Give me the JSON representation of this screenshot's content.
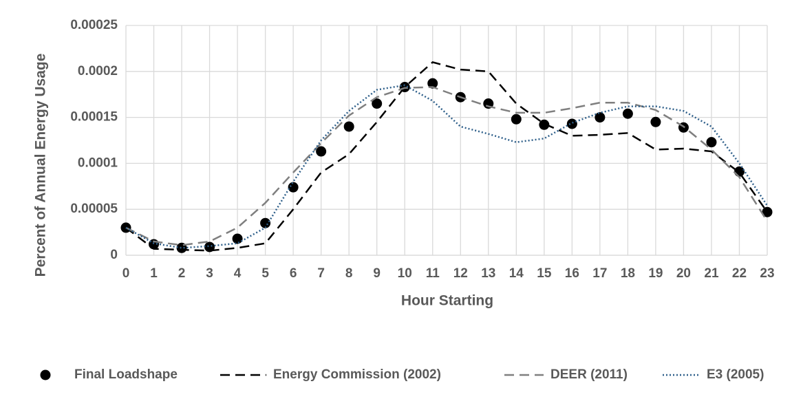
{
  "chart_data": {
    "type": "line",
    "x_label": "Hour Starting",
    "y_label": "Percent of Annual Energy Usage",
    "x": [
      0,
      1,
      2,
      3,
      4,
      5,
      6,
      7,
      8,
      9,
      10,
      11,
      12,
      13,
      14,
      15,
      16,
      17,
      18,
      19,
      20,
      21,
      22,
      23
    ],
    "xlim": [
      0,
      23
    ],
    "xticks": [
      0,
      1,
      2,
      3,
      4,
      5,
      6,
      7,
      8,
      9,
      10,
      11,
      12,
      13,
      14,
      15,
      16,
      17,
      18,
      19,
      20,
      21,
      22,
      23
    ],
    "ylim": [
      0,
      0.00025
    ],
    "yticks": [
      0,
      5e-05,
      0.0001,
      0.00015,
      0.0002,
      0.00025
    ],
    "grid": true,
    "legend": "bottom",
    "series": [
      {
        "name": "Final Loadshape",
        "color": "#000000",
        "style": "markers",
        "values": [
          3e-05,
          1.2e-05,
          8e-06,
          9e-06,
          1.8e-05,
          3.5e-05,
          7.4e-05,
          0.000113,
          0.00014,
          0.000165,
          0.000183,
          0.000187,
          0.000172,
          0.000165,
          0.000148,
          0.000142,
          0.000143,
          0.00015,
          0.000154,
          0.000145,
          0.000139,
          0.000123,
          9.1e-05,
          4.7e-05
        ]
      },
      {
        "name": "Energy Commission (2002)",
        "color": "#000000",
        "style": "dashed",
        "values": [
          3e-05,
          7e-06,
          6e-06,
          5e-06,
          8e-06,
          1.3e-05,
          5e-05,
          9e-05,
          0.00011,
          0.000145,
          0.000183,
          0.00021,
          0.000202,
          0.0002,
          0.000165,
          0.000143,
          0.00013,
          0.000131,
          0.000133,
          0.000115,
          0.000116,
          0.000113,
          9e-05,
          4.7e-05
        ]
      },
      {
        "name": "DEER (2011)",
        "color": "#7f7f7f",
        "style": "dashed",
        "values": [
          3e-05,
          1.5e-05,
          1.1e-05,
          1.5e-05,
          3e-05,
          5.7e-05,
          9e-05,
          0.000122,
          0.000152,
          0.000172,
          0.000182,
          0.000183,
          0.000172,
          0.000162,
          0.000155,
          0.000155,
          0.00016,
          0.000166,
          0.000166,
          0.000158,
          0.00014,
          0.000115,
          8.5e-05,
          3.7e-05
        ]
      },
      {
        "name": "E3 (2005)",
        "color": "#2e5f8a",
        "style": "dotted",
        "values": [
          3e-05,
          1.3e-05,
          8e-06,
          1e-05,
          1.3e-05,
          3e-05,
          8e-05,
          0.000125,
          0.000157,
          0.00018,
          0.000185,
          0.000168,
          0.00014,
          0.000132,
          0.000123,
          0.000127,
          0.000144,
          0.000155,
          0.000162,
          0.000162,
          0.000157,
          0.00014,
          0.0001,
          5.4e-05
        ]
      }
    ]
  }
}
